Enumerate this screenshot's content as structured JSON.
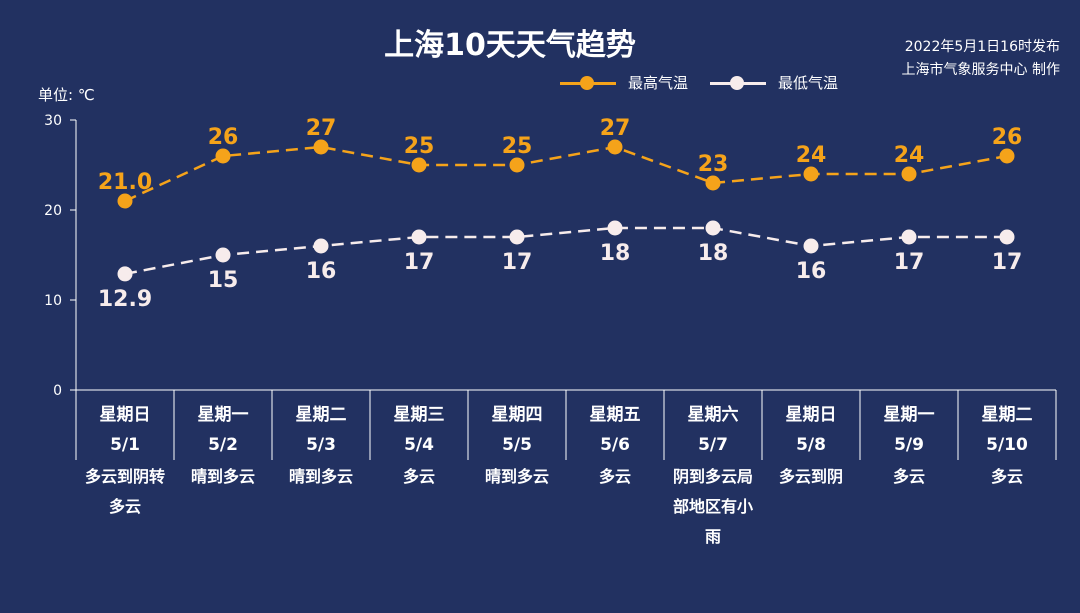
{
  "header": {
    "title": "上海10天天气趋势",
    "publish_time": "2022年5月1日16时发布",
    "publisher": "上海市气象服务中心 制作",
    "unit": "单位: ℃"
  },
  "days": [
    {
      "weekday": "星期日",
      "date": "5/1",
      "weather": "多云到阴转多云"
    },
    {
      "weekday": "星期一",
      "date": "5/2",
      "weather": "晴到多云"
    },
    {
      "weekday": "星期二",
      "date": "5/3",
      "weather": "晴到多云"
    },
    {
      "weekday": "星期三",
      "date": "5/4",
      "weather": "多云"
    },
    {
      "weekday": "星期四",
      "date": "5/5",
      "weather": "晴到多云"
    },
    {
      "weekday": "星期五",
      "date": "5/6",
      "weather": "多云"
    },
    {
      "weekday": "星期六",
      "date": "5/7",
      "weather": "阴到多云局部地区有小雨"
    },
    {
      "weekday": "星期日",
      "date": "5/8",
      "weather": "多云到阴"
    },
    {
      "weekday": "星期一",
      "date": "5/9",
      "weather": "多云"
    },
    {
      "weekday": "星期二",
      "date": "5/10",
      "weather": "多云"
    }
  ],
  "chart_data": {
    "type": "line",
    "title": "上海10天天气趋势",
    "ylabel": "单位: ℃",
    "ylim": [
      0,
      30
    ],
    "yticks": [
      0,
      10,
      20,
      30
    ],
    "categories": [
      "5/1",
      "5/2",
      "5/3",
      "5/4",
      "5/5",
      "5/6",
      "5/7",
      "5/8",
      "5/9",
      "5/10"
    ],
    "legend_position": "top-right",
    "series": [
      {
        "name": "最高气温",
        "color": "#f5a31a",
        "values": [
          21.0,
          26,
          27,
          25,
          25,
          27,
          23,
          24,
          24,
          26
        ],
        "labels": [
          "21.0",
          "26",
          "27",
          "25",
          "25",
          "27",
          "23",
          "24",
          "24",
          "26"
        ]
      },
      {
        "name": "最低气温",
        "color": "#f7ecec",
        "values": [
          12.9,
          15,
          16,
          17,
          17,
          18,
          18,
          16,
          17,
          17
        ],
        "labels": [
          "12.9",
          "15",
          "16",
          "17",
          "17",
          "18",
          "18",
          "16",
          "17",
          "17"
        ]
      }
    ]
  }
}
